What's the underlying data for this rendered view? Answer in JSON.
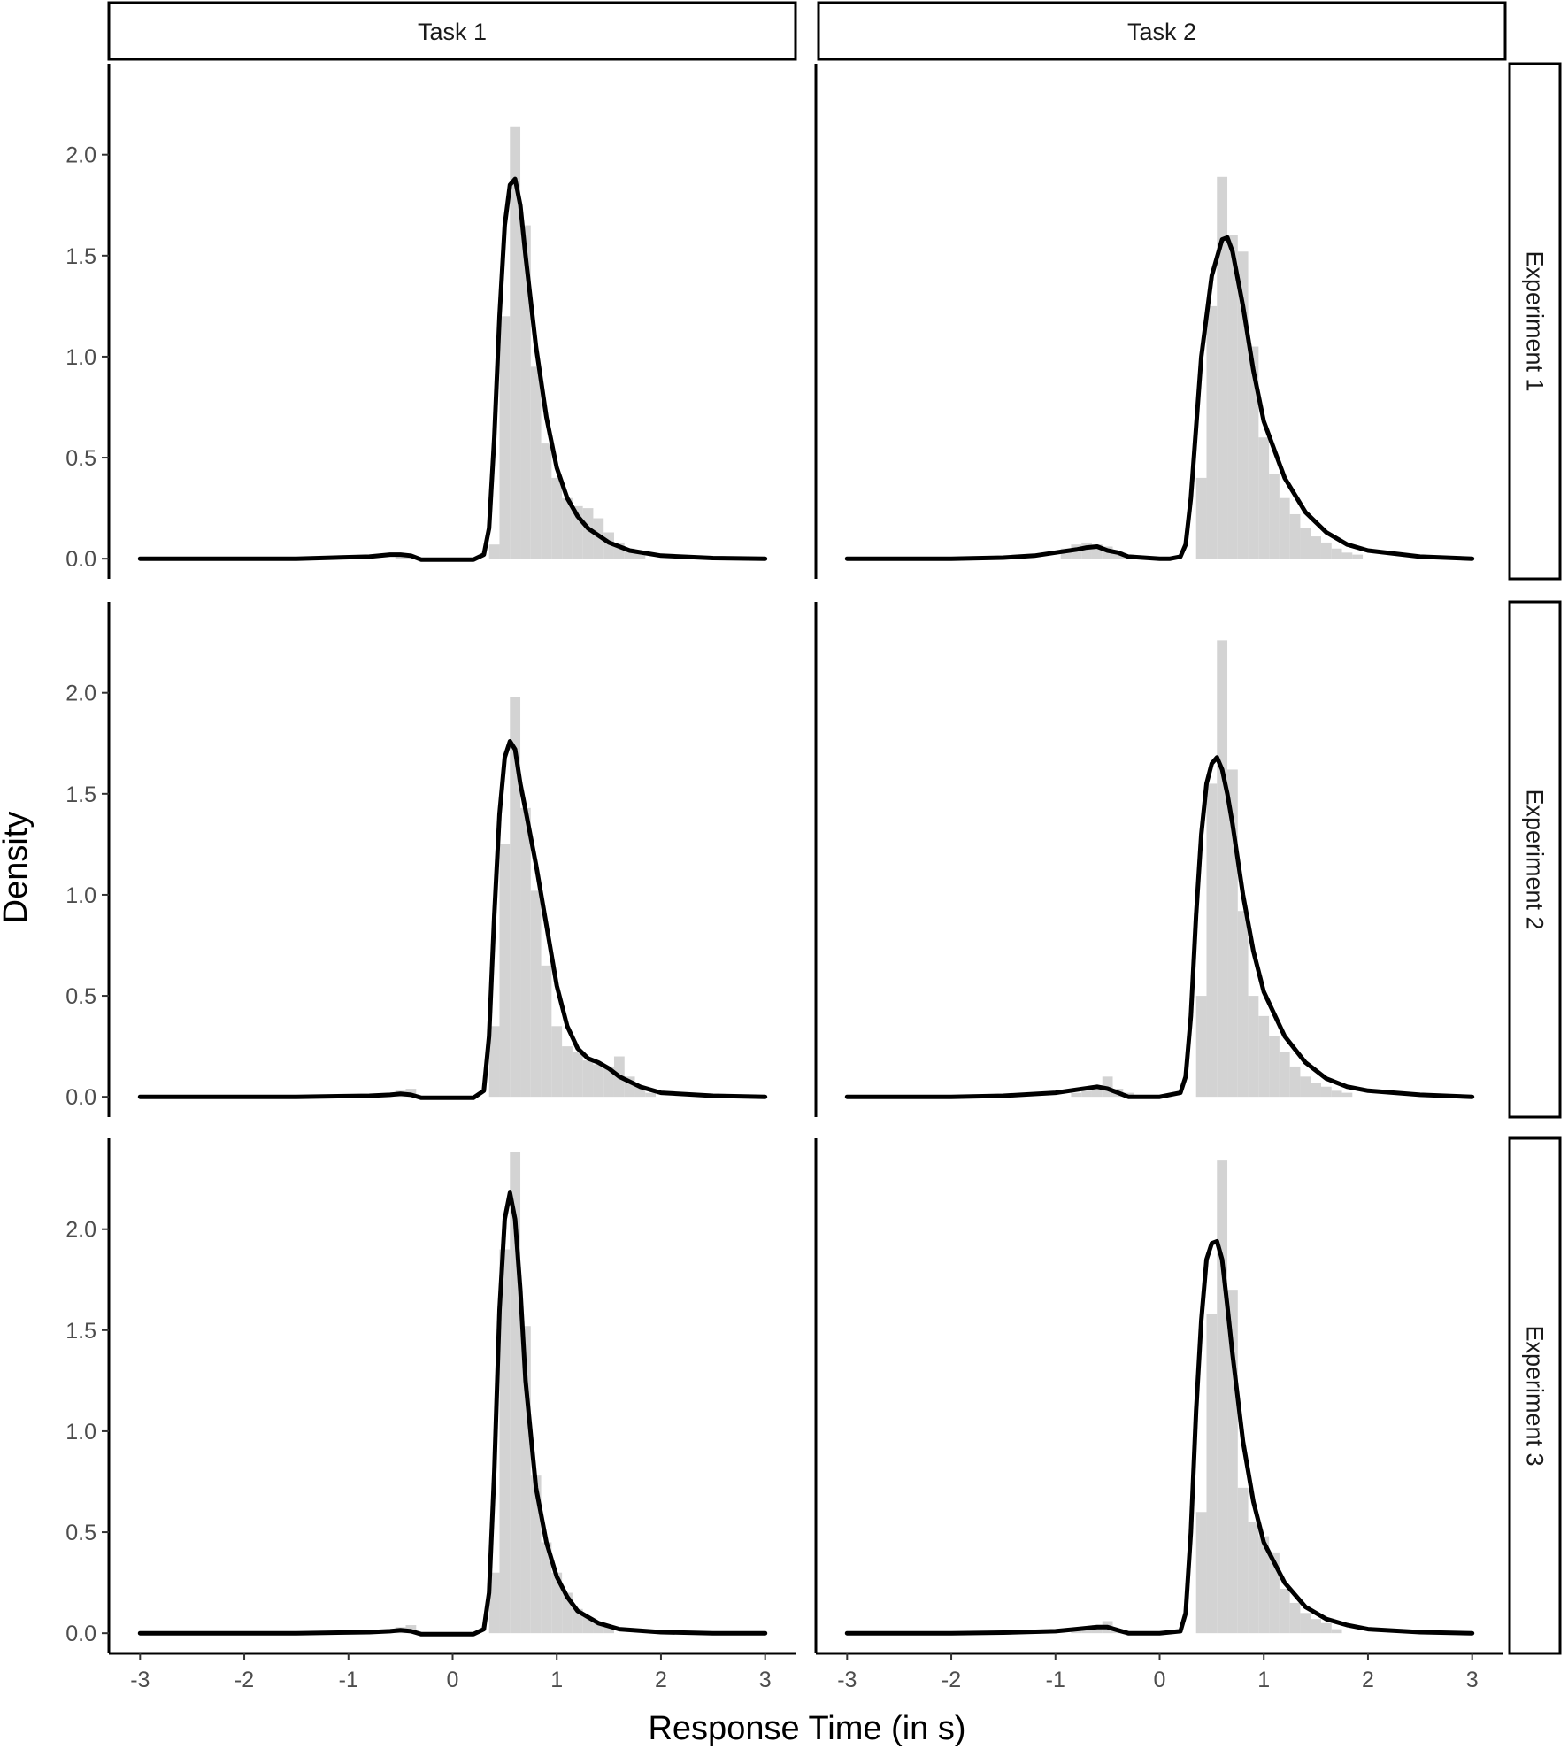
{
  "chart_data": {
    "type": "facet-histogram-density",
    "xlabel": "Response Time (in s)",
    "ylabel": "Density",
    "xlim": [
      -3.3,
      3.3
    ],
    "ylim": [
      -0.1,
      2.45
    ],
    "x_ticks": [
      "-3",
      "-2",
      "-1",
      "0",
      "1",
      "2",
      "3"
    ],
    "y_ticks": [
      "0.0",
      "0.5",
      "1.0",
      "1.5",
      "2.0"
    ],
    "grid": false,
    "columns": [
      "Task 1",
      "Task 2"
    ],
    "rows": [
      "Experiment 1",
      "Experiment 2",
      "Experiment 3"
    ],
    "colors": {
      "histogram": "#d3d3d3",
      "density": "#000000"
    },
    "panels": [
      {
        "row": "Experiment 1",
        "column": "Task 1",
        "histogram": {
          "bin_width": 0.1,
          "bin_starts": [
            -0.55,
            -0.45,
            0.35,
            0.45,
            0.55,
            0.65,
            0.75,
            0.85,
            0.95,
            1.05,
            1.15,
            1.25,
            1.35,
            1.45,
            1.55,
            1.65,
            1.75
          ],
          "heights": [
            0.02,
            0.01,
            0.07,
            1.2,
            2.14,
            1.65,
            0.95,
            0.57,
            0.4,
            0.3,
            0.26,
            0.25,
            0.2,
            0.13,
            0.08,
            0.05,
            0.03
          ]
        },
        "density": {
          "x": [
            -3,
            -1.5,
            -0.8,
            -0.6,
            -0.5,
            -0.4,
            -0.3,
            0,
            0.2,
            0.3,
            0.35,
            0.4,
            0.45,
            0.5,
            0.55,
            0.6,
            0.65,
            0.7,
            0.8,
            0.9,
            1.0,
            1.1,
            1.2,
            1.3,
            1.5,
            1.7,
            2.0,
            2.5,
            3.0
          ],
          "y": [
            0.0,
            0.0,
            0.01,
            0.02,
            0.02,
            0.015,
            -0.005,
            -0.005,
            -0.005,
            0.02,
            0.15,
            0.6,
            1.2,
            1.65,
            1.85,
            1.88,
            1.75,
            1.5,
            1.05,
            0.7,
            0.45,
            0.3,
            0.21,
            0.15,
            0.08,
            0.04,
            0.015,
            0.003,
            0.0
          ]
        }
      },
      {
        "row": "Experiment 1",
        "column": "Task 2",
        "histogram": {
          "bin_width": 0.1,
          "bin_starts": [
            -0.95,
            -0.85,
            -0.75,
            -0.65,
            -0.55,
            -0.45,
            -0.35,
            0.35,
            0.45,
            0.55,
            0.65,
            0.75,
            0.85,
            0.95,
            1.05,
            1.15,
            1.25,
            1.35,
            1.45,
            1.55,
            1.65,
            1.75,
            1.85
          ],
          "heights": [
            0.05,
            0.07,
            0.08,
            0.07,
            0.06,
            0.04,
            0.02,
            0.4,
            1.25,
            1.89,
            1.6,
            1.52,
            1.05,
            0.6,
            0.42,
            0.3,
            0.22,
            0.15,
            0.11,
            0.08,
            0.05,
            0.03,
            0.02
          ]
        },
        "density": {
          "x": [
            -3,
            -2,
            -1.5,
            -1.2,
            -1.0,
            -0.8,
            -0.7,
            -0.6,
            -0.5,
            -0.4,
            -0.3,
            0,
            0.1,
            0.2,
            0.25,
            0.3,
            0.35,
            0.4,
            0.5,
            0.6,
            0.65,
            0.7,
            0.8,
            0.9,
            1.0,
            1.2,
            1.4,
            1.6,
            1.8,
            2.0,
            2.5,
            3.0
          ],
          "y": [
            0.0,
            0.0,
            0.005,
            0.015,
            0.03,
            0.045,
            0.055,
            0.06,
            0.04,
            0.03,
            0.01,
            0.0,
            0.0,
            0.01,
            0.07,
            0.3,
            0.65,
            1.0,
            1.4,
            1.58,
            1.59,
            1.52,
            1.25,
            0.93,
            0.68,
            0.4,
            0.23,
            0.13,
            0.07,
            0.04,
            0.01,
            0.0
          ]
        }
      },
      {
        "row": "Experiment 2",
        "column": "Task 1",
        "histogram": {
          "bin_width": 0.1,
          "bin_starts": [
            -0.55,
            -0.45,
            0.35,
            0.45,
            0.55,
            0.65,
            0.75,
            0.85,
            0.95,
            1.05,
            1.15,
            1.25,
            1.35,
            1.45,
            1.55,
            1.65,
            1.75,
            1.85
          ],
          "heights": [
            0.03,
            0.04,
            0.35,
            1.25,
            1.98,
            1.43,
            1.02,
            0.65,
            0.35,
            0.25,
            0.22,
            0.18,
            0.16,
            0.15,
            0.2,
            0.1,
            0.05,
            0.02
          ]
        },
        "density": {
          "x": [
            -3,
            -1.5,
            -0.8,
            -0.6,
            -0.5,
            -0.4,
            -0.3,
            0,
            0.2,
            0.3,
            0.35,
            0.4,
            0.45,
            0.5,
            0.55,
            0.6,
            0.65,
            0.7,
            0.8,
            0.9,
            1.0,
            1.1,
            1.2,
            1.3,
            1.4,
            1.5,
            1.6,
            1.8,
            2.0,
            2.5,
            3.0
          ],
          "y": [
            0.0,
            0.0,
            0.005,
            0.01,
            0.015,
            0.01,
            -0.005,
            -0.005,
            -0.005,
            0.03,
            0.3,
            0.9,
            1.4,
            1.68,
            1.76,
            1.72,
            1.55,
            1.42,
            1.15,
            0.85,
            0.55,
            0.35,
            0.24,
            0.19,
            0.17,
            0.14,
            0.1,
            0.05,
            0.02,
            0.005,
            0.0
          ]
        }
      },
      {
        "row": "Experiment 2",
        "column": "Task 2",
        "histogram": {
          "bin_width": 0.1,
          "bin_starts": [
            -0.85,
            -0.75,
            -0.65,
            -0.55,
            -0.45,
            -0.35,
            0.35,
            0.45,
            0.55,
            0.65,
            0.75,
            0.85,
            0.95,
            1.05,
            1.15,
            1.25,
            1.35,
            1.45,
            1.55,
            1.65,
            1.75
          ],
          "heights": [
            0.02,
            0.03,
            0.05,
            0.1,
            0.04,
            0.02,
            0.5,
            1.55,
            2.26,
            1.62,
            0.92,
            0.5,
            0.4,
            0.3,
            0.22,
            0.15,
            0.1,
            0.07,
            0.05,
            0.03,
            0.02
          ]
        },
        "density": {
          "x": [
            -3,
            -2,
            -1.5,
            -1.0,
            -0.8,
            -0.6,
            -0.5,
            -0.4,
            -0.3,
            0,
            0.2,
            0.25,
            0.3,
            0.35,
            0.4,
            0.45,
            0.5,
            0.55,
            0.6,
            0.65,
            0.7,
            0.8,
            0.9,
            1.0,
            1.2,
            1.4,
            1.6,
            1.8,
            2.0,
            2.5,
            3.0
          ],
          "y": [
            0.0,
            0.0,
            0.005,
            0.02,
            0.035,
            0.05,
            0.04,
            0.02,
            0.0,
            0.0,
            0.02,
            0.1,
            0.4,
            0.9,
            1.3,
            1.55,
            1.65,
            1.68,
            1.62,
            1.5,
            1.35,
            1.0,
            0.72,
            0.52,
            0.3,
            0.17,
            0.09,
            0.05,
            0.03,
            0.01,
            0.0
          ]
        }
      },
      {
        "row": "Experiment 3",
        "column": "Task 1",
        "histogram": {
          "bin_width": 0.1,
          "bin_starts": [
            -0.55,
            -0.45,
            0.35,
            0.45,
            0.55,
            0.65,
            0.75,
            0.85,
            0.95,
            1.05,
            1.15,
            1.25,
            1.35,
            1.45
          ],
          "heights": [
            0.03,
            0.04,
            0.3,
            1.9,
            2.38,
            1.52,
            0.78,
            0.45,
            0.3,
            0.2,
            0.12,
            0.08,
            0.05,
            0.03
          ]
        },
        "density": {
          "x": [
            -3,
            -1.5,
            -0.8,
            -0.6,
            -0.5,
            -0.4,
            -0.3,
            0,
            0.2,
            0.3,
            0.35,
            0.4,
            0.45,
            0.5,
            0.55,
            0.6,
            0.65,
            0.7,
            0.8,
            0.9,
            1.0,
            1.1,
            1.2,
            1.4,
            1.6,
            2.0,
            2.5,
            3.0
          ],
          "y": [
            0.0,
            0.0,
            0.005,
            0.01,
            0.015,
            0.01,
            -0.005,
            -0.005,
            -0.005,
            0.02,
            0.2,
            0.8,
            1.6,
            2.05,
            2.18,
            2.05,
            1.7,
            1.25,
            0.72,
            0.45,
            0.28,
            0.18,
            0.11,
            0.05,
            0.02,
            0.005,
            0.0,
            0.0
          ]
        }
      },
      {
        "row": "Experiment 3",
        "column": "Task 2",
        "histogram": {
          "bin_width": 0.1,
          "bin_starts": [
            -0.85,
            -0.75,
            -0.65,
            -0.55,
            -0.45,
            0.35,
            0.45,
            0.55,
            0.65,
            0.75,
            0.85,
            0.95,
            1.05,
            1.15,
            1.25,
            1.35,
            1.45,
            1.55,
            1.65
          ],
          "heights": [
            0.02,
            0.03,
            0.04,
            0.06,
            0.02,
            0.6,
            1.58,
            2.34,
            1.7,
            0.72,
            0.55,
            0.48,
            0.4,
            0.22,
            0.15,
            0.1,
            0.07,
            0.05,
            0.02
          ]
        },
        "density": {
          "x": [
            -3,
            -2,
            -1.5,
            -1.0,
            -0.8,
            -0.6,
            -0.5,
            -0.4,
            -0.3,
            0,
            0.2,
            0.25,
            0.3,
            0.35,
            0.4,
            0.45,
            0.5,
            0.55,
            0.6,
            0.65,
            0.7,
            0.8,
            0.9,
            1.0,
            1.2,
            1.4,
            1.6,
            1.8,
            2.0,
            2.5,
            3.0
          ],
          "y": [
            0.0,
            0.0,
            0.003,
            0.01,
            0.02,
            0.03,
            0.03,
            0.015,
            0.0,
            0.0,
            0.01,
            0.1,
            0.5,
            1.1,
            1.55,
            1.85,
            1.93,
            1.94,
            1.85,
            1.62,
            1.38,
            0.95,
            0.65,
            0.45,
            0.25,
            0.13,
            0.07,
            0.04,
            0.02,
            0.005,
            0.0
          ]
        }
      }
    ]
  }
}
